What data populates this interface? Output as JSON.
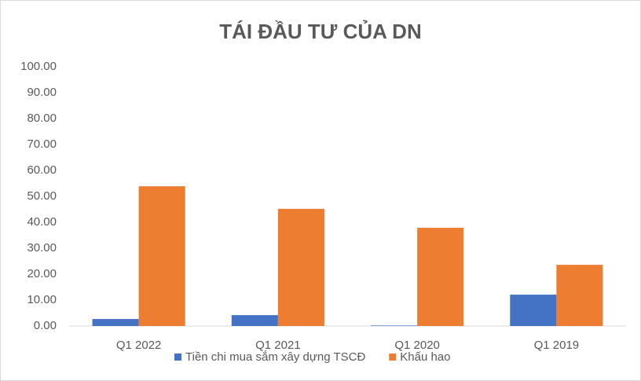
{
  "chart_data": {
    "type": "bar",
    "title": "TÁI ĐẦU TƯ CỦA DN",
    "categories": [
      "Q1 2022",
      "Q1 2021",
      "Q1 2020",
      "Q1 2019"
    ],
    "series": [
      {
        "name": "Tiền chi mua sắm xây dựng TSCĐ",
        "color": "#4472c4",
        "values": [
          2.7,
          4.2,
          0.2,
          12.1
        ]
      },
      {
        "name": "Khấu hao",
        "color": "#ed7d31",
        "values": [
          53.9,
          45.2,
          37.9,
          23.6
        ]
      }
    ],
    "ylim": [
      0,
      100
    ],
    "yticks": [
      {
        "value": 0,
        "label": "0.00"
      },
      {
        "value": 10,
        "label": "10.00"
      },
      {
        "value": 20,
        "label": "20.00"
      },
      {
        "value": 30,
        "label": "30.00"
      },
      {
        "value": 40,
        "label": "40.00"
      },
      {
        "value": 50,
        "label": "50.00"
      },
      {
        "value": 60,
        "label": "60.00"
      },
      {
        "value": 70,
        "label": "70.00"
      },
      {
        "value": 80,
        "label": "80.00"
      },
      {
        "value": 90,
        "label": "90.00"
      },
      {
        "value": 100,
        "label": "100.00"
      }
    ],
    "grid": false,
    "legend": "bottom"
  }
}
